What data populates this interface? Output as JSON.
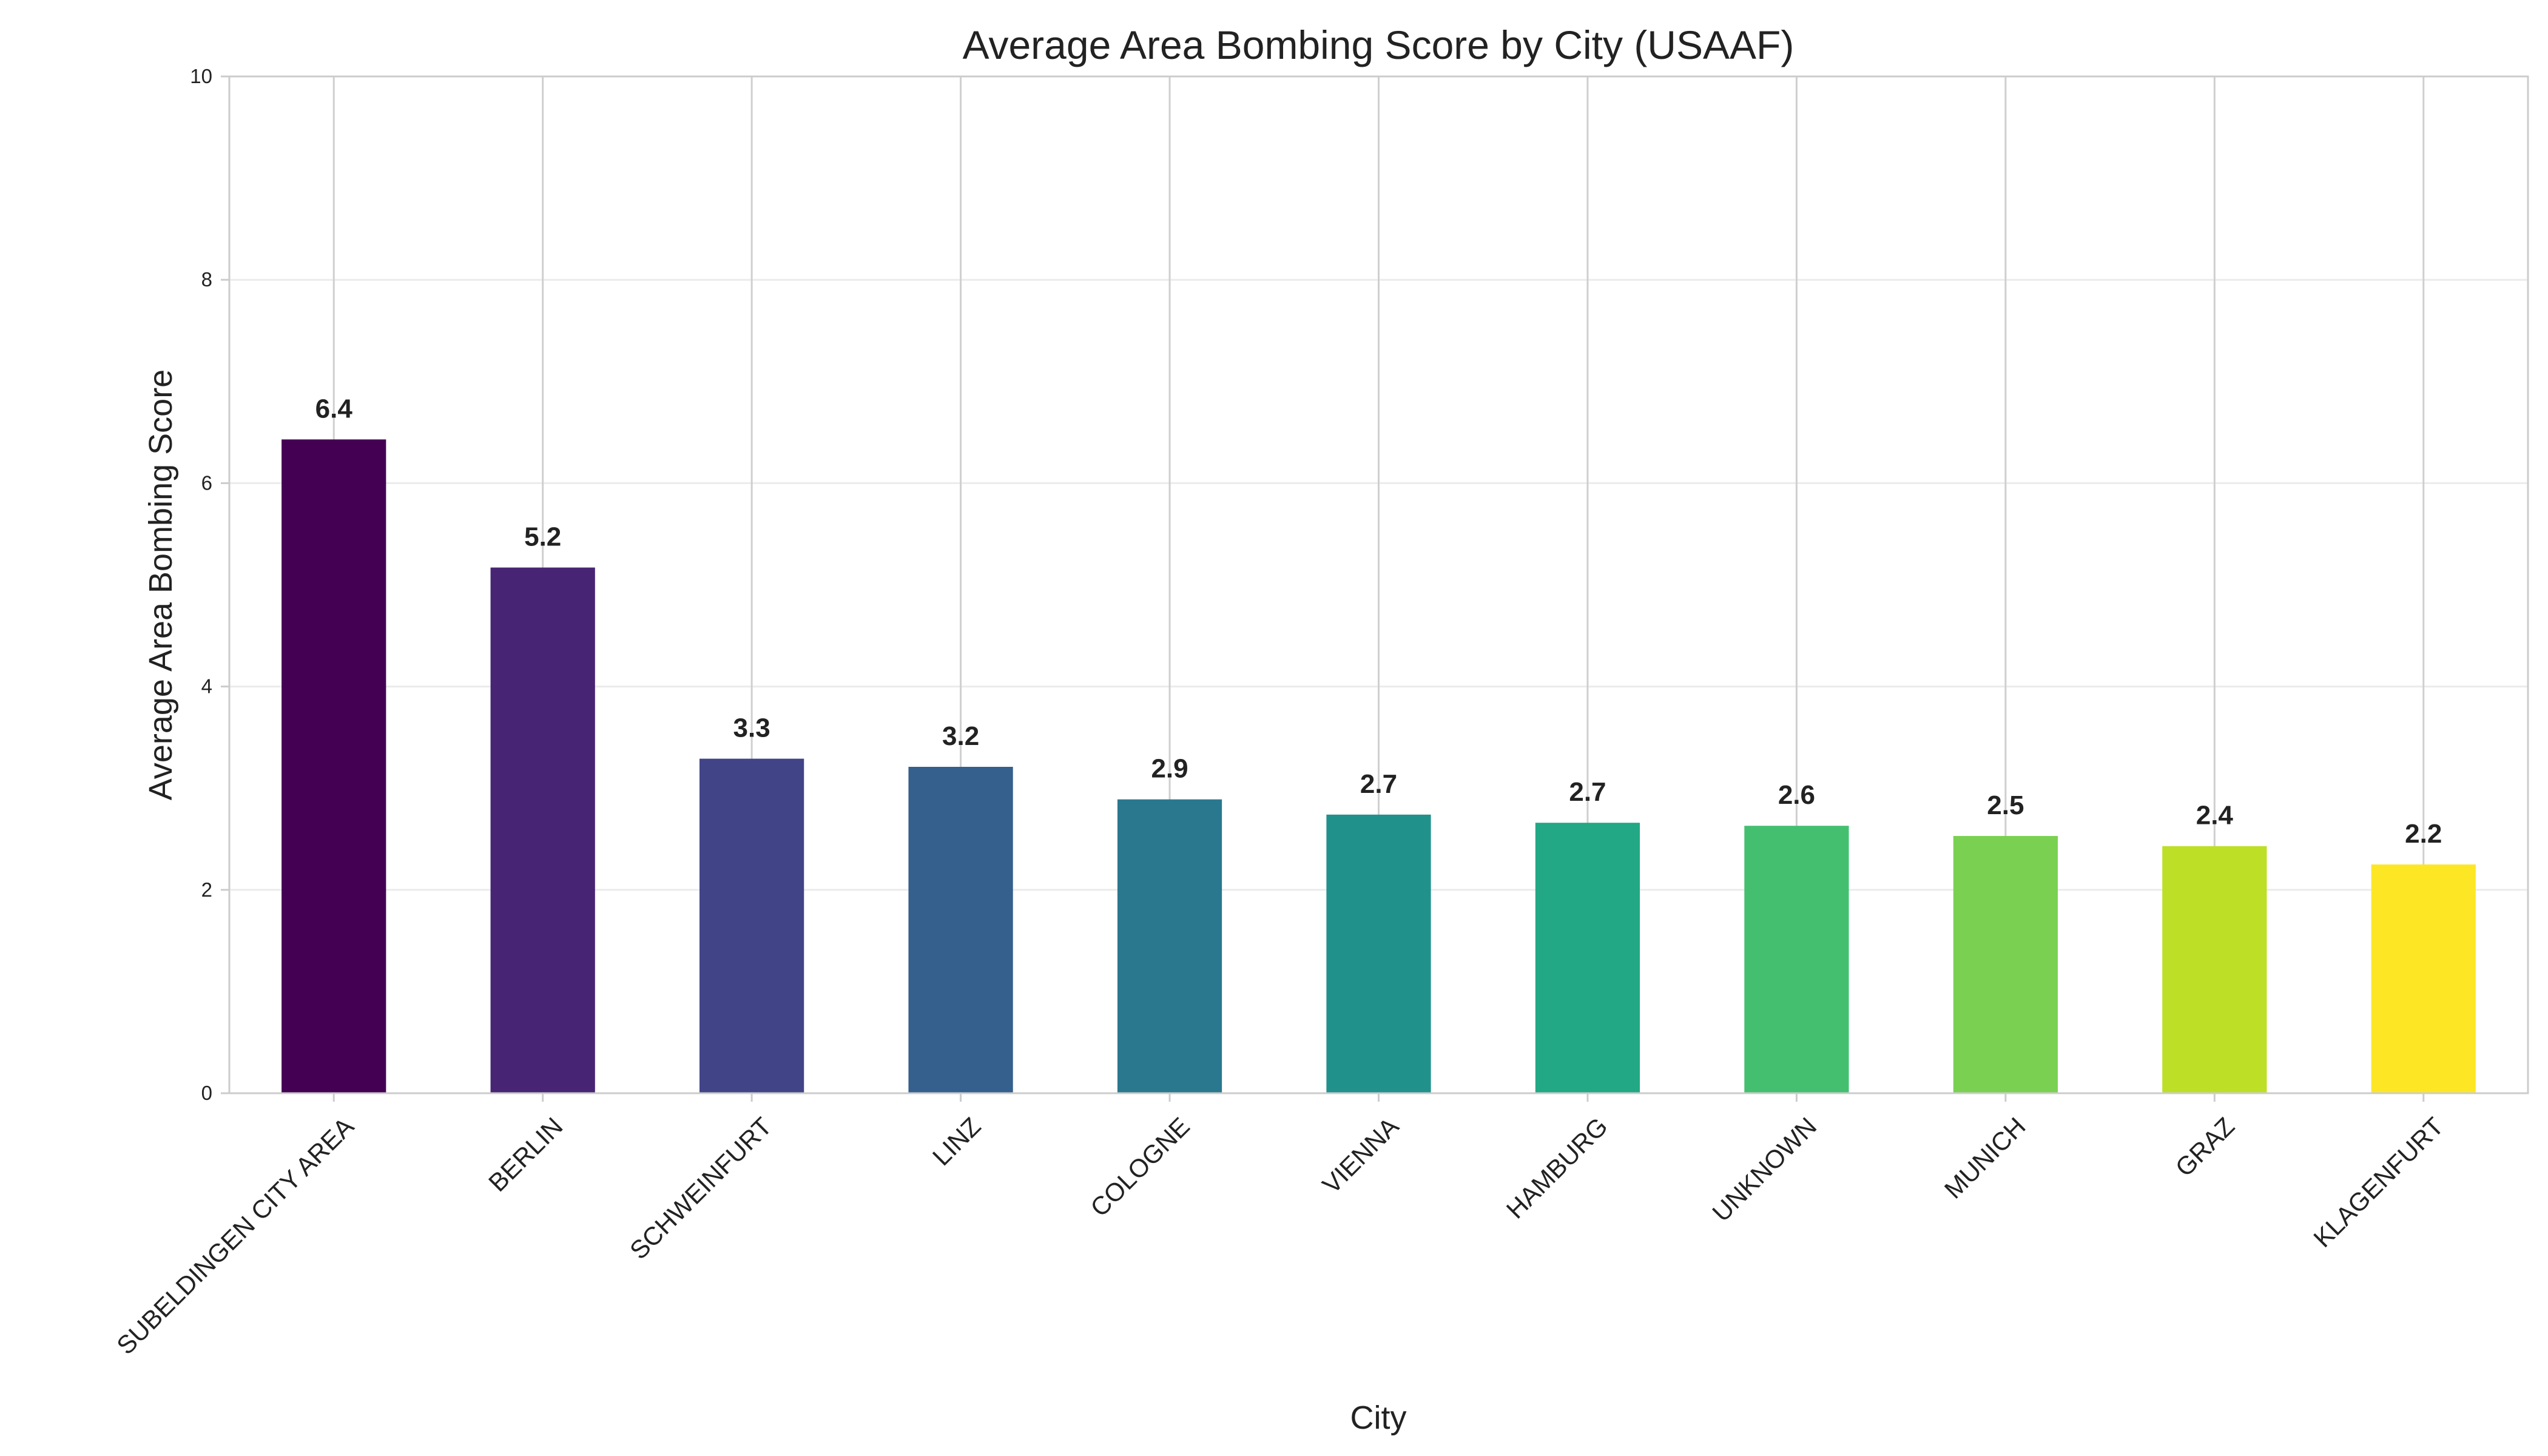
{
  "chart_data": {
    "type": "bar",
    "title": "Average Area Bombing Score by City (USAAF)",
    "xlabel": "City",
    "ylabel": "Average Area Bombing Score",
    "ylim": [
      0,
      10
    ],
    "yticks": [
      "0",
      "2",
      "4",
      "6",
      "8",
      "10"
    ],
    "grid": true,
    "categories": [
      "SUBELDINGEN CITY AREA",
      "BERLIN",
      "SCHWEINFURT",
      "LINZ",
      "COLOGNE",
      "VIENNA",
      "HAMBURG",
      "UNKNOWN",
      "MUNICH",
      "GRAZ",
      "KLAGENFURT"
    ],
    "values": [
      6.43,
      5.17,
      3.29,
      3.21,
      2.89,
      2.74,
      2.66,
      2.63,
      2.53,
      2.43,
      2.25
    ],
    "value_labels": [
      "6.4",
      "5.2",
      "3.3",
      "3.2",
      "2.9",
      "2.7",
      "2.7",
      "2.6",
      "2.5",
      "2.4",
      "2.2"
    ],
    "colors": [
      "#440154",
      "#482475",
      "#414487",
      "#355f8d",
      "#2a788e",
      "#21918c",
      "#22a884",
      "#44bf70",
      "#7ad151",
      "#bddf26",
      "#fde725"
    ]
  }
}
